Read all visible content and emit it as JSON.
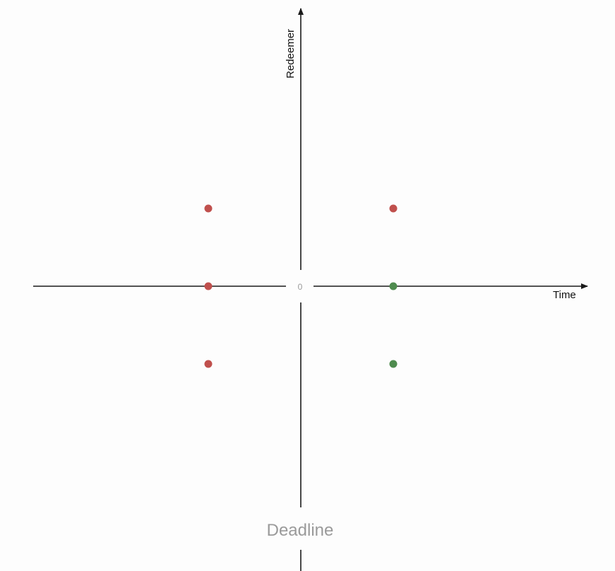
{
  "chart_data": {
    "type": "scatter",
    "title": "",
    "xlabel": "Time",
    "ylabel": "Redeemer",
    "origin_label": "0",
    "annotation": "Deadline",
    "xlim": [
      -1.6,
      1.6
    ],
    "ylim": [
      -1.6,
      1.6
    ],
    "grid": false,
    "colors": {
      "red": "#c0504d",
      "green": "#4e8b4e",
      "axis": "#1a1a1a",
      "muted_text": "#9a9a9a"
    },
    "points": [
      {
        "x": -0.5,
        "y": 0.5,
        "color": "red"
      },
      {
        "x": -0.5,
        "y": 0,
        "color": "red"
      },
      {
        "x": -0.5,
        "y": -0.5,
        "color": "red"
      },
      {
        "x": 0.5,
        "y": 0.5,
        "color": "red"
      },
      {
        "x": 0.5,
        "y": 0,
        "color": "green"
      },
      {
        "x": 0.5,
        "y": -0.5,
        "color": "green"
      }
    ]
  }
}
